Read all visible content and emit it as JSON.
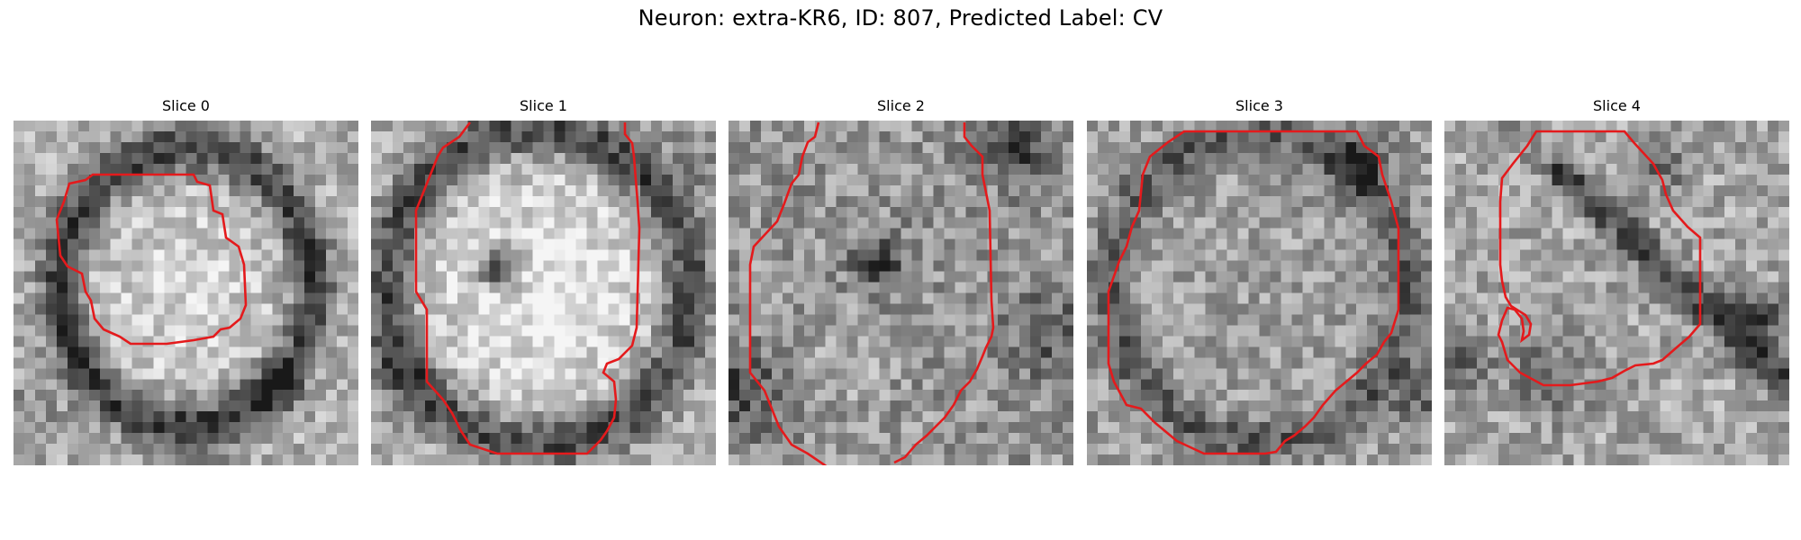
{
  "figure": {
    "title": "Neuron: extra-KR6, ID: 807, Predicted Label: CV"
  },
  "panels": [
    {
      "title": "Slice 0"
    },
    {
      "title": "Slice 1"
    },
    {
      "title": "Slice 2"
    },
    {
      "title": "Slice 3"
    },
    {
      "title": "Slice 4"
    }
  ],
  "colors": {
    "background": "#ffffff",
    "contour": "#e41a1c",
    "text": "#000000"
  }
}
